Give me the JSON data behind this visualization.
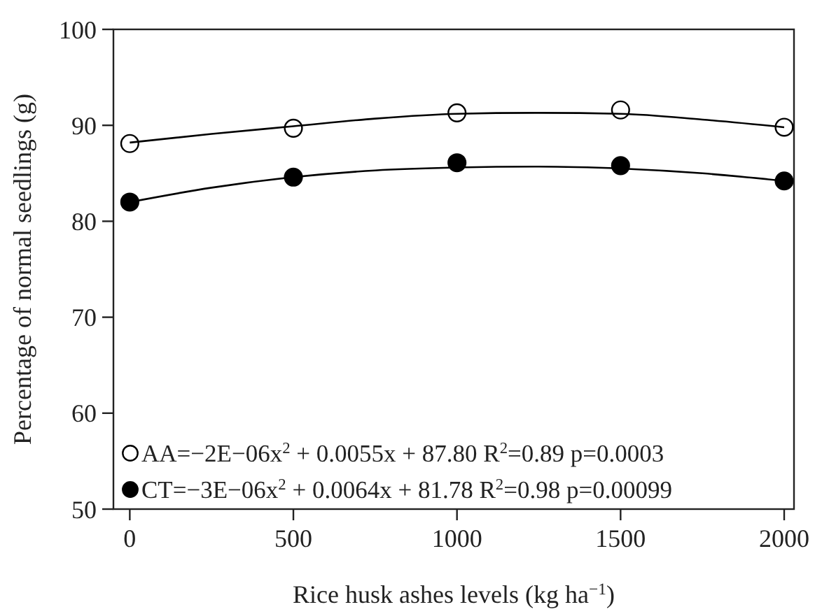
{
  "chart_data": {
    "type": "scatter",
    "xlabel": "Rice husk ashes levels (kg ha$^{−1}$)",
    "ylabel": "Percentage of normal seedlings (g)",
    "xlim": [
      -50,
      2030
    ],
    "ylim": [
      50,
      100
    ],
    "xticks": [
      0,
      500,
      1000,
      1500,
      2000
    ],
    "yticks": [
      50,
      60,
      70,
      80,
      90,
      100
    ],
    "grid": false,
    "legend": "bottom left",
    "series": [
      {
        "name": "AA=−2E−06x$^{2}$ + 0.0055x + 87.80 R$^{2}$=0.89 p=0.0003",
        "color": "#ffffff",
        "marker": "circle",
        "x": [
          0,
          500,
          1000,
          1500,
          2000
        ],
        "values": [
          88.1,
          89.7,
          91.3,
          91.6,
          89.8
        ]
      },
      {
        "name": "CT=−3E−06x$^{2}$ + 0.0064x + 81.78 R$^{2}$=0.98 p=0.00099",
        "color": "#000000",
        "marker": "circle",
        "x": [
          0,
          500,
          1000,
          1500,
          2000
        ],
        "values": [
          82.0,
          84.6,
          86.1,
          85.8,
          84.2
        ]
      },
      {
        "type": "line",
        "color": "#000000",
        "marker": "none",
        "x": [
          0,
          250,
          500,
          750,
          1000,
          1250,
          1500,
          1750,
          2000
        ],
        "values": [
          88.2,
          89.1,
          89.9,
          90.7,
          91.2,
          91.3,
          91.2,
          90.6,
          89.8
        ]
      },
      {
        "type": "line",
        "color": "#000000",
        "marker": "none",
        "x": [
          0,
          250,
          500,
          750,
          1000,
          1250,
          1500,
          1750,
          2000
        ],
        "values": [
          82.0,
          83.5,
          84.6,
          85.3,
          85.6,
          85.7,
          85.5,
          85.0,
          84.2
        ]
      }
    ]
  }
}
